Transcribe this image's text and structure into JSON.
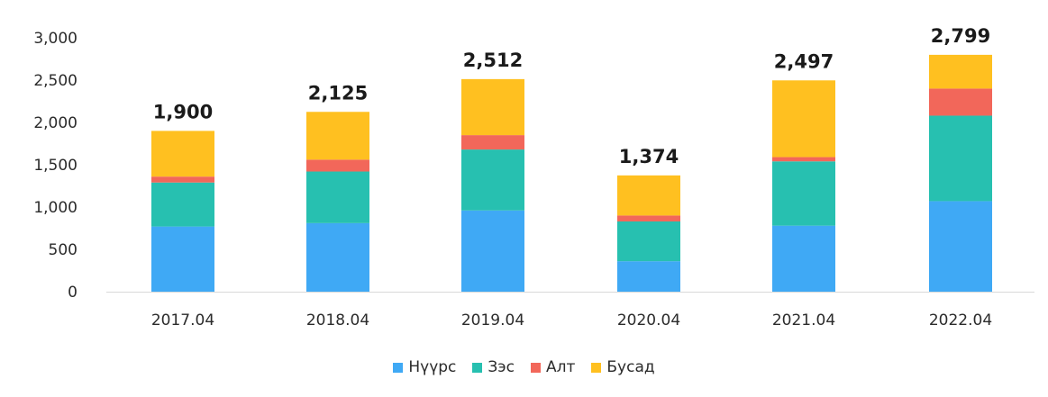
{
  "chart_data": {
    "type": "bar",
    "stacked": true,
    "categories": [
      "2017.04",
      "2018.04",
      "2019.04",
      "2020.04",
      "2021.04",
      "2022.04"
    ],
    "series": [
      {
        "name": "Нүүрс",
        "color": "#3fa9f5",
        "values": [
          770,
          810,
          960,
          360,
          780,
          1070
        ]
      },
      {
        "name": "Зэс",
        "color": "#27c0b0",
        "values": [
          520,
          610,
          720,
          470,
          760,
          1010
        ]
      },
      {
        "name": "Алт",
        "color": "#f2675a",
        "values": [
          70,
          140,
          170,
          70,
          50,
          320
        ]
      },
      {
        "name": "Бусад",
        "color": "#ffc020",
        "values": [
          540,
          565,
          662,
          474,
          907,
          399
        ]
      }
    ],
    "totals": [
      "1,900",
      "2,125",
      "2,512",
      "1,374",
      "2,497",
      "2,799"
    ],
    "y_ticks": [
      "0",
      "500",
      "1,000",
      "1,500",
      "2,000",
      "2,500",
      "3,000"
    ],
    "ylim": [
      0,
      3000
    ],
    "grid": false,
    "legend_position": "bottom"
  }
}
